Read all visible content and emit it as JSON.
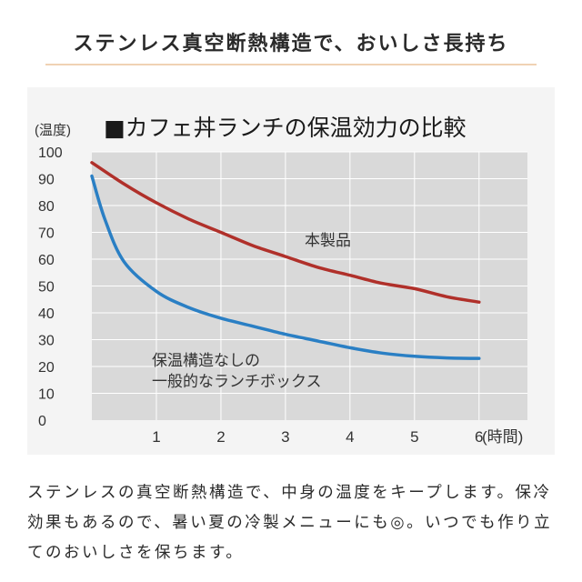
{
  "headline": "ステンレス真空断熱構造で、おいしさ長持ち",
  "body_text": "ステンレスの真空断熱構造で、中身の温度をキープします。保冷効果もあるので、暑い夏の冷製メニューにも◎。いつでも作り立てのおいしさを保ちます。",
  "colors": {
    "plot_bg": "#d9d9d9",
    "grid": "#ffffff",
    "series_product": "#b0302a",
    "series_plain": "#2a7fc4",
    "headline_rule": "#f0d2b4"
  },
  "chart_data": {
    "type": "line",
    "title": "■カフェ丼ランチの保温効力の比較",
    "ylabel": "(温度)",
    "xlabel": "(時間)",
    "xlim": [
      0,
      6.75
    ],
    "ylim": [
      0,
      100
    ],
    "x_ticks": [
      "1",
      "2",
      "3",
      "4",
      "5",
      "6"
    ],
    "y_ticks": [
      "0",
      "10",
      "20",
      "30",
      "40",
      "50",
      "60",
      "70",
      "80",
      "90",
      "100"
    ],
    "grid": true,
    "series": [
      {
        "name": "本製品",
        "color": "#b0302a",
        "x": [
          0,
          0.5,
          1,
          1.5,
          2,
          2.5,
          3,
          3.5,
          4,
          4.5,
          5,
          5.5,
          6
        ],
        "y": [
          96,
          88,
          81,
          75,
          70,
          65,
          61,
          57,
          54,
          51,
          49,
          46,
          44
        ]
      },
      {
        "name": "保温構造なしの一般的なランチボックス",
        "label_lines": [
          "保温構造なしの",
          "一般的なランチボックス"
        ],
        "color": "#2a7fc4",
        "x": [
          0,
          0.2,
          0.5,
          1,
          1.5,
          2,
          2.5,
          3,
          3.5,
          4,
          4.5,
          5,
          5.5,
          6
        ],
        "y": [
          91,
          75,
          59,
          48,
          42,
          38,
          35,
          32,
          29.5,
          27,
          25,
          23.8,
          23.2,
          23
        ]
      }
    ]
  }
}
